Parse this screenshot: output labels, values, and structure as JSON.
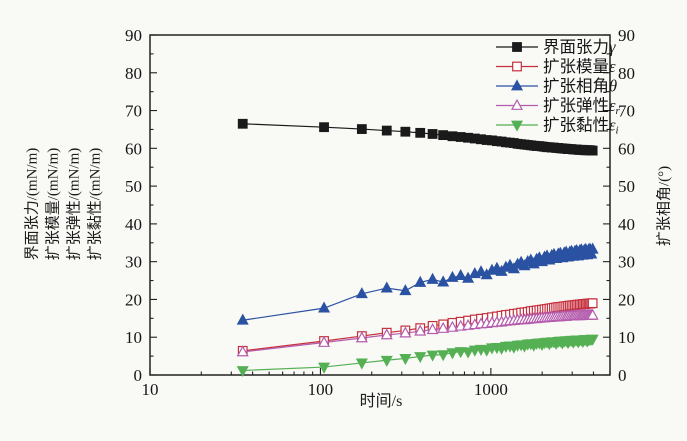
{
  "figure": {
    "background": "#f9f9f6"
  },
  "axes": {
    "left": {
      "lines": [
        "界面张力/(mN/m)",
        "扩张模量/(mN/m)",
        "扩张弹性/(mN/m)",
        "扩张黏性/(mN/m)"
      ],
      "ticks": [
        0,
        10,
        20,
        30,
        40,
        50,
        60,
        70,
        80,
        90
      ]
    },
    "right": {
      "label": "扩张相角/(°)",
      "ticks": [
        0,
        10,
        20,
        30,
        40,
        50,
        60,
        70,
        80,
        90
      ]
    },
    "bottom": {
      "label": "时间/s",
      "ticks": [
        10,
        100,
        1000
      ]
    }
  },
  "chart_data": {
    "type": "line",
    "x_scale": "log",
    "xlim": [
      10,
      5000
    ],
    "ylim": [
      0,
      90
    ],
    "xlabel": "时间/s",
    "ylabel_left": [
      "界面张力/(mN/m)",
      "扩张模量/(mN/m)",
      "扩张弹性/(mN/m)",
      "扩张黏性/(mN/m)"
    ],
    "ylabel_right": "扩张相角/(°)",
    "grid": false,
    "legend_position": "top-right-inside",
    "x": [
      35,
      105,
      175,
      245,
      315,
      385,
      455,
      525,
      595,
      665,
      735,
      805,
      875,
      945,
      1015,
      1085,
      1155,
      1225,
      1295,
      1365,
      1435,
      1505,
      1575,
      1645,
      1715,
      1785,
      1855,
      1925,
      1995,
      2065,
      2135,
      2205,
      2275,
      2345,
      2415,
      2485,
      2555,
      2625,
      2695,
      2765,
      2835,
      2905,
      2975,
      3045,
      3115,
      3185,
      3255,
      3325,
      3395,
      3465,
      3535,
      3605,
      3675,
      3745,
      3815,
      3885,
      3955
    ],
    "series": [
      {
        "label": "界面张力",
        "symbol": "γ",
        "sub": "",
        "marker": "square",
        "filled": true,
        "color": "#1a1a1a",
        "values": [
          66.5,
          65.6,
          65.1,
          64.7,
          64.4,
          64.1,
          63.8,
          63.5,
          63.2,
          63.0,
          62.8,
          62.6,
          62.4,
          62.2,
          62.1,
          61.9,
          61.8,
          61.6,
          61.5,
          61.4,
          61.2,
          61.1,
          61.0,
          60.9,
          60.8,
          60.7,
          60.6,
          60.6,
          60.5,
          60.4,
          60.3,
          60.3,
          60.2,
          60.2,
          60.1,
          60.1,
          60.0,
          60.0,
          59.9,
          59.9,
          59.8,
          59.8,
          59.8,
          59.7,
          59.7,
          59.7,
          59.6,
          59.6,
          59.6,
          59.6,
          59.5,
          59.5,
          59.5,
          59.5,
          59.5,
          59.4,
          59.4
        ]
      },
      {
        "label": "扩张模量",
        "symbol": "ε",
        "sub": "",
        "marker": "square",
        "filled": false,
        "color": "#c5303c",
        "values": [
          6.4,
          9.0,
          10.3,
          11.2,
          11.8,
          12.4,
          13.0,
          13.4,
          13.8,
          14.1,
          14.4,
          14.7,
          14.9,
          15.1,
          15.3,
          15.5,
          15.7,
          15.9,
          16.0,
          16.2,
          16.3,
          16.5,
          16.6,
          16.7,
          16.9,
          17.0,
          17.1,
          17.2,
          17.3,
          17.4,
          17.5,
          17.6,
          17.7,
          17.8,
          17.9,
          18.0,
          18.0,
          18.1,
          18.2,
          18.2,
          18.3,
          18.4,
          18.4,
          18.5,
          18.5,
          18.6,
          18.6,
          18.7,
          18.7,
          18.8,
          18.8,
          18.8,
          18.9,
          18.9,
          18.9,
          19.0,
          19.0
        ]
      },
      {
        "label": "扩张相角",
        "symbol": "θ",
        "sub": "",
        "marker": "triangle-up",
        "filled": true,
        "color": "#2b52a2",
        "values": [
          14.5,
          17.7,
          21.5,
          23.0,
          22.3,
          24.5,
          25.3,
          24.6,
          25.8,
          26.3,
          25.6,
          26.8,
          27.3,
          26.5,
          27.7,
          28.2,
          27.4,
          28.5,
          29.0,
          28.1,
          29.3,
          29.8,
          28.9,
          30.0,
          30.4,
          29.4,
          30.6,
          31.0,
          30.0,
          31.2,
          31.5,
          30.4,
          31.6,
          31.9,
          30.8,
          32.0,
          32.2,
          31.0,
          32.3,
          32.5,
          31.2,
          32.5,
          32.7,
          31.4,
          32.7,
          32.9,
          31.5,
          32.9,
          33.1,
          31.7,
          33.0,
          33.2,
          31.8,
          33.1,
          33.3,
          32.0,
          33.3
        ]
      },
      {
        "label": "扩张弹性",
        "symbol": "ε",
        "sub": "r",
        "marker": "triangle-up",
        "filled": false,
        "color": "#b45cad",
        "values": [
          6.1,
          8.6,
          9.8,
          10.6,
          11.1,
          11.6,
          12.0,
          12.3,
          12.6,
          12.9,
          13.1,
          13.3,
          13.5,
          13.6,
          13.8,
          13.9,
          14.0,
          14.2,
          14.3,
          14.4,
          14.5,
          14.6,
          14.6,
          14.7,
          14.8,
          14.9,
          14.9,
          15.0,
          15.1,
          15.1,
          15.2,
          15.2,
          15.3,
          15.3,
          15.4,
          15.4,
          15.4,
          15.5,
          15.5,
          15.5,
          15.6,
          15.6,
          15.6,
          15.6,
          15.7,
          15.7,
          15.7,
          15.7,
          15.7,
          15.8,
          15.8,
          15.8,
          15.8,
          15.8,
          15.8,
          15.8,
          15.8
        ]
      },
      {
        "label": "扩张黏性",
        "symbol": "ε",
        "sub": "i",
        "marker": "triangle-down",
        "filled": true,
        "color": "#55b054",
        "values": [
          1.2,
          2.1,
          3.2,
          3.9,
          4.4,
          4.9,
          5.3,
          5.4,
          5.9,
          6.2,
          6.1,
          6.6,
          6.8,
          6.6,
          7.2,
          7.3,
          7.1,
          7.6,
          7.7,
          7.4,
          7.9,
          8.0,
          7.7,
          8.2,
          8.3,
          7.9,
          8.4,
          8.5,
          8.1,
          8.6,
          8.7,
          8.3,
          8.8,
          8.8,
          8.4,
          8.9,
          9.0,
          8.5,
          9.0,
          9.1,
          8.6,
          9.1,
          9.2,
          8.7,
          9.2,
          9.3,
          8.8,
          9.3,
          9.3,
          8.9,
          9.4,
          9.4,
          9.0,
          9.4,
          9.4,
          9.5,
          9.5
        ]
      }
    ]
  }
}
